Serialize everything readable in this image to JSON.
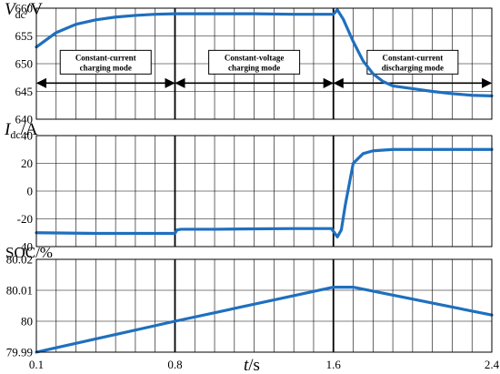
{
  "chart_data": [
    {
      "type": "line",
      "ylabel_main": "V",
      "ylabel_sub": "dc",
      "ylabel_unit": "/V",
      "ylim": [
        640,
        660
      ],
      "yticks": [
        640,
        645,
        650,
        655,
        660
      ],
      "xlim": [
        0.1,
        2.4
      ],
      "grid": true,
      "color": "#1f6fbf",
      "series": [
        {
          "x": [
            0.1,
            0.2,
            0.3,
            0.4,
            0.5,
            0.6,
            0.7,
            0.8,
            0.81,
            1.0,
            1.2,
            1.4,
            1.6,
            1.62,
            1.65,
            1.7,
            1.75,
            1.8,
            1.85,
            1.9,
            2.0,
            2.1,
            2.2,
            2.3,
            2.4
          ],
          "y": [
            653,
            655.6,
            657.1,
            657.9,
            658.4,
            658.7,
            658.9,
            659,
            659,
            659,
            659,
            658.9,
            658.9,
            659.7,
            658,
            654,
            650.5,
            648.2,
            646.8,
            646,
            645.5,
            645,
            644.6,
            644.3,
            644.2
          ]
        }
      ],
      "annotations": [
        {
          "line1": "Constant-current",
          "line2": "charging mode",
          "x_start": 0.1,
          "x_end": 0.8
        },
        {
          "line1": "Constant-voltage",
          "line2": "charging mode",
          "x_start": 0.8,
          "x_end": 1.6
        },
        {
          "line1": "Constant-current",
          "line2": "discharging mode",
          "x_start": 1.6,
          "x_end": 2.4
        }
      ],
      "arrow_y": 646.5
    },
    {
      "type": "line",
      "ylabel_main": "I",
      "ylabel_sub": "dc",
      "ylabel_unit": "/A",
      "ylim": [
        -40,
        40
      ],
      "yticks": [
        -40,
        -20,
        0,
        20,
        40
      ],
      "xlim": [
        0.1,
        2.4
      ],
      "grid": true,
      "color": "#1f6fbf",
      "series": [
        {
          "x": [
            0.1,
            0.4,
            0.8,
            0.81,
            0.83,
            1.0,
            1.2,
            1.4,
            1.59,
            1.6,
            1.62,
            1.64,
            1.66,
            1.7,
            1.75,
            1.8,
            1.9,
            2.0,
            2.2,
            2.4
          ],
          "y": [
            -30,
            -30.5,
            -30.5,
            -28,
            -27.5,
            -27.5,
            -27.2,
            -27,
            -27,
            -29,
            -33,
            -28,
            -10,
            20,
            27,
            29,
            30,
            30,
            30,
            30
          ]
        }
      ]
    },
    {
      "type": "line",
      "ylabel_main": "SOC/%",
      "ylim": [
        79.99,
        80.02
      ],
      "yticks": [
        79.99,
        80,
        80.01,
        80.02
      ],
      "ytick_labels": [
        "79.99",
        "80",
        "80.01",
        "80.02"
      ],
      "xlim": [
        0.1,
        2.4
      ],
      "xticks": [
        0.1,
        0.8,
        1.6,
        2.4
      ],
      "xtick_labels": [
        "0.1",
        "0.8",
        "1.6",
        "2.4"
      ],
      "xlabel_main": "t",
      "xlabel_unit": "/s",
      "grid": true,
      "color": "#1f6fbf",
      "series": [
        {
          "x": [
            0.1,
            0.8,
            1.6,
            1.7,
            2.4
          ],
          "y": [
            79.99,
            80,
            80.011,
            80.011,
            80.002
          ]
        }
      ]
    }
  ]
}
